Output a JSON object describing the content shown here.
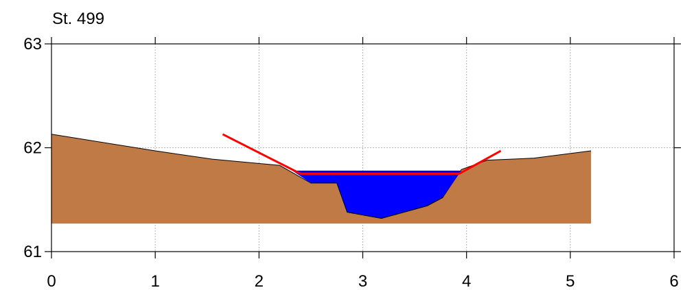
{
  "chart_data": {
    "type": "area",
    "title": "St. 499",
    "xlabel": "",
    "ylabel": "",
    "xlim": [
      0,
      6
    ],
    "ylim": [
      61,
      63
    ],
    "x_ticks": [
      "0",
      "1",
      "2",
      "3",
      "4",
      "5",
      "6"
    ],
    "y_ticks": [
      "61",
      "62",
      "63"
    ],
    "grid": true,
    "colors": {
      "terrain": "#c07a45",
      "water": "#0000ff",
      "lines": "#ff0000",
      "outline": "#000000"
    },
    "terrain": {
      "base": 61.27,
      "x": [
        0,
        1.0,
        1.55,
        2.2,
        2.5,
        2.75,
        2.85,
        3.18,
        3.62,
        3.77,
        3.95,
        4.2,
        4.65,
        5.2
      ],
      "y": [
        62.13,
        61.97,
        61.89,
        61.83,
        61.66,
        61.66,
        61.38,
        61.32,
        61.44,
        61.52,
        61.79,
        61.88,
        61.9,
        61.97
      ]
    },
    "water": {
      "level": 61.78,
      "x": [
        2.32,
        2.5,
        2.75,
        2.85,
        3.18,
        3.62,
        3.77,
        3.95
      ],
      "y": [
        61.78,
        61.66,
        61.66,
        61.38,
        61.32,
        61.44,
        61.52,
        61.78
      ]
    },
    "red_lines": [
      {
        "x": [
          1.65,
          2.4,
          3.93,
          4.33
        ],
        "y": [
          62.13,
          61.75,
          61.75,
          61.97
        ]
      }
    ]
  }
}
